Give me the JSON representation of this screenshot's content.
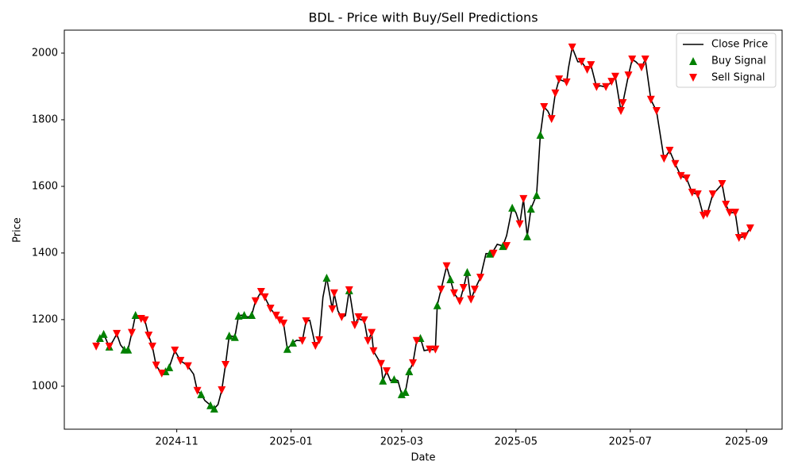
{
  "chart_data": {
    "type": "line",
    "title": "BDL - Price with Buy/Sell Predictions",
    "xlabel": "Date",
    "ylabel": "Price",
    "xlim": [
      19968,
      20351
    ],
    "ylim": [
      871,
      2069
    ],
    "xticks": [
      {
        "value": 20028,
        "label": "2024-11"
      },
      {
        "value": 20089,
        "label": "2025-01"
      },
      {
        "value": 20148,
        "label": "2025-03"
      },
      {
        "value": 20209,
        "label": "2025-05"
      },
      {
        "value": 20270,
        "label": "2025-07"
      },
      {
        "value": 20332,
        "label": "2025-09"
      }
    ],
    "yticks": [
      1000,
      1200,
      1400,
      1600,
      1800,
      2000
    ],
    "grid": false,
    "legend": "upper right",
    "series": [
      {
        "name": "Close Price",
        "type": "line",
        "color": "#000000",
        "x": [
          19985,
          19987,
          19989,
          19991,
          19992,
          19994,
          19996,
          19998,
          20000,
          20002,
          20004,
          20006,
          20009,
          20011,
          20013,
          20015,
          20017,
          20020,
          20022,
          20024,
          20027,
          20030,
          20032,
          20034,
          20037,
          20039,
          20041,
          20043,
          20046,
          20048,
          20050,
          20052,
          20054,
          20056,
          20059,
          20061,
          20064,
          20066,
          20068,
          20070,
          20073,
          20075,
          20078,
          20081,
          20083,
          20085,
          20087,
          20090,
          20092,
          20095,
          20097,
          20099,
          20102,
          20104,
          20106,
          20108,
          20111,
          20112,
          20114,
          20116,
          20118,
          20120,
          20121,
          20123,
          20125,
          20126,
          20128,
          20130,
          20132,
          20133,
          20137,
          20138,
          20140,
          20142,
          20144,
          20146,
          20148,
          20150,
          20152,
          20154,
          20156,
          20158,
          20160,
          20163,
          20166,
          20167,
          20169,
          20172,
          20174,
          20176,
          20179,
          20181,
          20183,
          20185,
          20187,
          20190,
          20193,
          20195,
          20197,
          20199,
          20202,
          20204,
          20207,
          20209,
          20211,
          20213,
          20215,
          20217,
          20220,
          20222,
          20224,
          20226,
          20228,
          20230,
          20232,
          20234,
          20236,
          20237,
          20239,
          20242,
          20244,
          20247,
          20249,
          20252,
          20254,
          20257,
          20260,
          20262,
          20265,
          20266,
          20269,
          20271,
          20273,
          20276,
          20278,
          20281,
          20284,
          20288,
          20291,
          20294,
          20297,
          20300,
          20303,
          20306,
          20309,
          20311,
          20314,
          20316,
          20319,
          20321,
          20323,
          20326,
          20328,
          20331,
          20334
        ],
        "values": [
          1119,
          1145,
          1157,
          1131,
          1119,
          1136,
          1157,
          1124,
          1110,
          1110,
          1160,
          1214,
          1202,
          1198,
          1152,
          1119,
          1062,
          1038,
          1045,
          1057,
          1107,
          1076,
          1069,
          1060,
          1036,
          986,
          976,
          957,
          943,
          933,
          945,
          988,
          1064,
          1152,
          1148,
          1212,
          1214,
          1207,
          1214,
          1255,
          1283,
          1267,
          1233,
          1212,
          1198,
          1188,
          1112,
          1131,
          1138,
          1136,
          1195,
          1198,
          1121,
          1138,
          1267,
          1326,
          1231,
          1279,
          1226,
          1207,
          1212,
          1288,
          1255,
          1183,
          1207,
          1200,
          1198,
          1136,
          1160,
          1105,
          1067,
          1017,
          1045,
          1017,
          1021,
          1017,
          976,
          983,
          1045,
          1069,
          1136,
          1145,
          1107,
          1110,
          1110,
          1243,
          1290,
          1360,
          1321,
          1279,
          1255,
          1295,
          1343,
          1260,
          1290,
          1326,
          1398,
          1398,
          1407,
          1426,
          1421,
          1452,
          1536,
          1521,
          1486,
          1562,
          1450,
          1533,
          1574,
          1755,
          1838,
          1826,
          1802,
          1879,
          1921,
          1917,
          1912,
          1955,
          2017,
          1974,
          1974,
          1950,
          1964,
          1898,
          1902,
          1898,
          1914,
          1929,
          1826,
          1850,
          1933,
          1981,
          1974,
          1957,
          1981,
          1860,
          1826,
          1683,
          1707,
          1667,
          1631,
          1624,
          1581,
          1576,
          1512,
          1517,
          1576,
          1588,
          1607,
          1545,
          1521,
          1521,
          1445,
          1450,
          1474
        ]
      },
      {
        "name": "Buy Signal",
        "type": "scatter",
        "marker": "up",
        "color": "#008000",
        "x": [
          19987,
          19989,
          19992,
          20000,
          20002,
          20006,
          20022,
          20024,
          20041,
          20046,
          20048,
          20056,
          20059,
          20061,
          20064,
          20068,
          20087,
          20090,
          20108,
          20120,
          20138,
          20144,
          20148,
          20150,
          20152,
          20158,
          20167,
          20174,
          20183,
          20195,
          20202,
          20207,
          20215,
          20217,
          20220,
          20222
        ],
        "values": [
          1145,
          1157,
          1119,
          1110,
          1110,
          1214,
          1045,
          1057,
          976,
          943,
          933,
          1152,
          1148,
          1212,
          1214,
          1214,
          1112,
          1131,
          1326,
          1288,
          1017,
          1021,
          976,
          983,
          1045,
          1145,
          1243,
          1321,
          1343,
          1398,
          1421,
          1536,
          1450,
          1533,
          1574,
          1755
        ]
      },
      {
        "name": "Sell Signal",
        "type": "scatter",
        "marker": "down",
        "color": "#ff0000",
        "x": [
          19985,
          19992,
          19996,
          20004,
          20009,
          20011,
          20013,
          20015,
          20017,
          20020,
          20027,
          20030,
          20034,
          20039,
          20052,
          20054,
          20070,
          20073,
          20075,
          20078,
          20081,
          20083,
          20085,
          20095,
          20097,
          20102,
          20104,
          20111,
          20112,
          20116,
          20120,
          20123,
          20125,
          20128,
          20130,
          20132,
          20133,
          20137,
          20140,
          20154,
          20156,
          20163,
          20166,
          20169,
          20172,
          20176,
          20179,
          20181,
          20185,
          20187,
          20190,
          20197,
          20204,
          20211,
          20213,
          20224,
          20228,
          20230,
          20232,
          20236,
          20239,
          20244,
          20247,
          20249,
          20252,
          20257,
          20260,
          20262,
          20265,
          20266,
          20269,
          20271,
          20276,
          20278,
          20281,
          20284,
          20288,
          20291,
          20294,
          20297,
          20300,
          20303,
          20306,
          20309,
          20311,
          20314,
          20319,
          20321,
          20323,
          20326,
          20328,
          20331,
          20334
        ],
        "values": [
          1119,
          1119,
          1157,
          1160,
          1202,
          1198,
          1152,
          1119,
          1062,
          1038,
          1107,
          1076,
          1060,
          986,
          988,
          1064,
          1255,
          1283,
          1267,
          1233,
          1212,
          1198,
          1188,
          1136,
          1195,
          1121,
          1138,
          1231,
          1279,
          1207,
          1288,
          1183,
          1207,
          1198,
          1136,
          1160,
          1105,
          1067,
          1045,
          1069,
          1136,
          1110,
          1110,
          1290,
          1360,
          1279,
          1255,
          1295,
          1260,
          1290,
          1326,
          1398,
          1421,
          1486,
          1562,
          1838,
          1802,
          1879,
          1921,
          1912,
          2017,
          1974,
          1950,
          1964,
          1898,
          1898,
          1914,
          1929,
          1826,
          1850,
          1933,
          1981,
          1957,
          1981,
          1860,
          1826,
          1683,
          1707,
          1667,
          1631,
          1624,
          1581,
          1576,
          1512,
          1517,
          1576,
          1607,
          1545,
          1521,
          1521,
          1445,
          1450,
          1474
        ]
      }
    ]
  }
}
